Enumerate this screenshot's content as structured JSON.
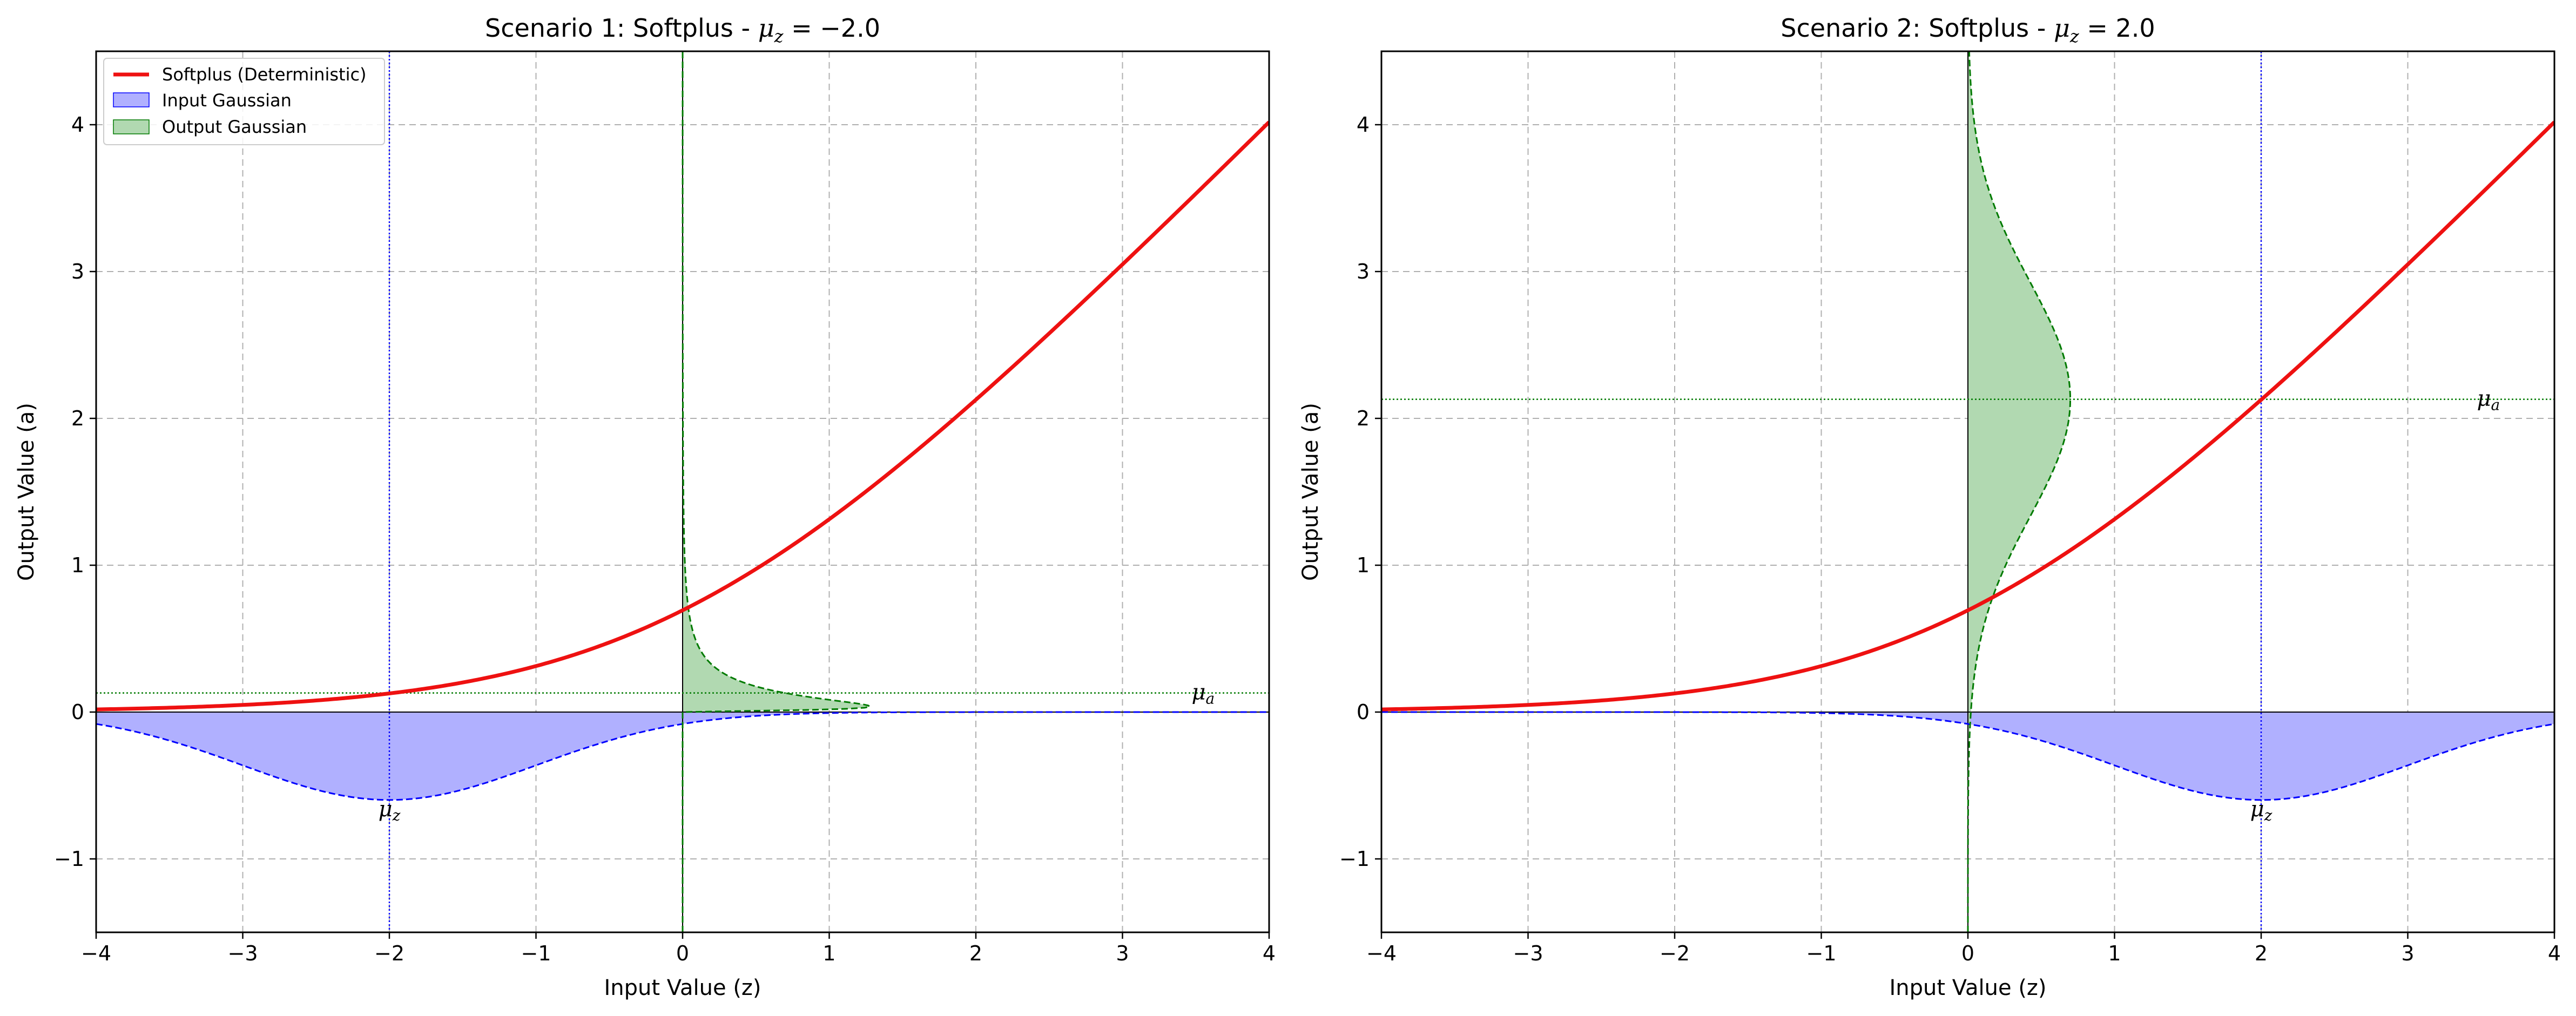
{
  "chart_data": [
    {
      "type": "line",
      "title": "Scenario 1: Softplus - μ_z = −2.0",
      "title_parts": {
        "prefix": "Scenario 1: Softplus - ",
        "mu_sub": "z",
        "suffix": " = −2.0"
      },
      "xlabel": "Input Value (z)",
      "ylabel": "Output Value (a)",
      "xlim": [
        -4,
        4
      ],
      "ylim": [
        -1.5,
        4.5
      ],
      "xticks": [
        -4,
        -3,
        -2,
        -1,
        0,
        1,
        2,
        3,
        4
      ],
      "yticks": [
        -1,
        0,
        1,
        2,
        3,
        4
      ],
      "xtick_labels": [
        "−4",
        "−3",
        "−2",
        "−1",
        "0",
        "1",
        "2",
        "3",
        "4"
      ],
      "ytick_labels": [
        "−1",
        "0",
        "1",
        "2",
        "3",
        "4"
      ],
      "grid": true,
      "mu_z": -2.0,
      "sigma_z": 1.0,
      "mu_a": 0.13,
      "sigma_a": 0.12,
      "input_pdf_scale": 1.5,
      "output_pdf_scale": 0.25,
      "mu_z_label": "μz",
      "mu_a_label": "μa",
      "legend": {
        "placement": "top-left",
        "entries": [
          "Softplus (Deterministic)",
          "Input Gaussian",
          "Output Gaussian"
        ]
      },
      "colors": {
        "softplus": "#ee1111",
        "input": "#0000ff",
        "input_fill": "#b0b0ff",
        "output": "#007a00",
        "output_fill": "#b1d9b1"
      }
    },
    {
      "type": "line",
      "title": "Scenario 2: Softplus - μ_z = 2.0",
      "title_parts": {
        "prefix": "Scenario 2: Softplus - ",
        "mu_sub": "z",
        "suffix": " = 2.0"
      },
      "xlabel": "Input Value (z)",
      "ylabel": "Output Value (a)",
      "xlim": [
        -4,
        4
      ],
      "ylim": [
        -1.5,
        4.5
      ],
      "xticks": [
        -4,
        -3,
        -2,
        -1,
        0,
        1,
        2,
        3,
        4
      ],
      "yticks": [
        -1,
        0,
        1,
        2,
        3,
        4
      ],
      "xtick_labels": [
        "−4",
        "−3",
        "−2",
        "−1",
        "0",
        "1",
        "2",
        "3",
        "4"
      ],
      "ytick_labels": [
        "−1",
        "0",
        "1",
        "2",
        "3",
        "4"
      ],
      "grid": true,
      "mu_z": 2.0,
      "sigma_z": 1.0,
      "mu_a": 2.13,
      "sigma_a": 0.8,
      "input_pdf_scale": 1.5,
      "output_pdf_scale": 1.4,
      "mu_z_label": "μz",
      "mu_a_label": "μa",
      "legend": null,
      "colors": {
        "softplus": "#ee1111",
        "input": "#0000ff",
        "input_fill": "#b0b0ff",
        "output": "#007a00",
        "output_fill": "#b1d9b1"
      }
    }
  ]
}
